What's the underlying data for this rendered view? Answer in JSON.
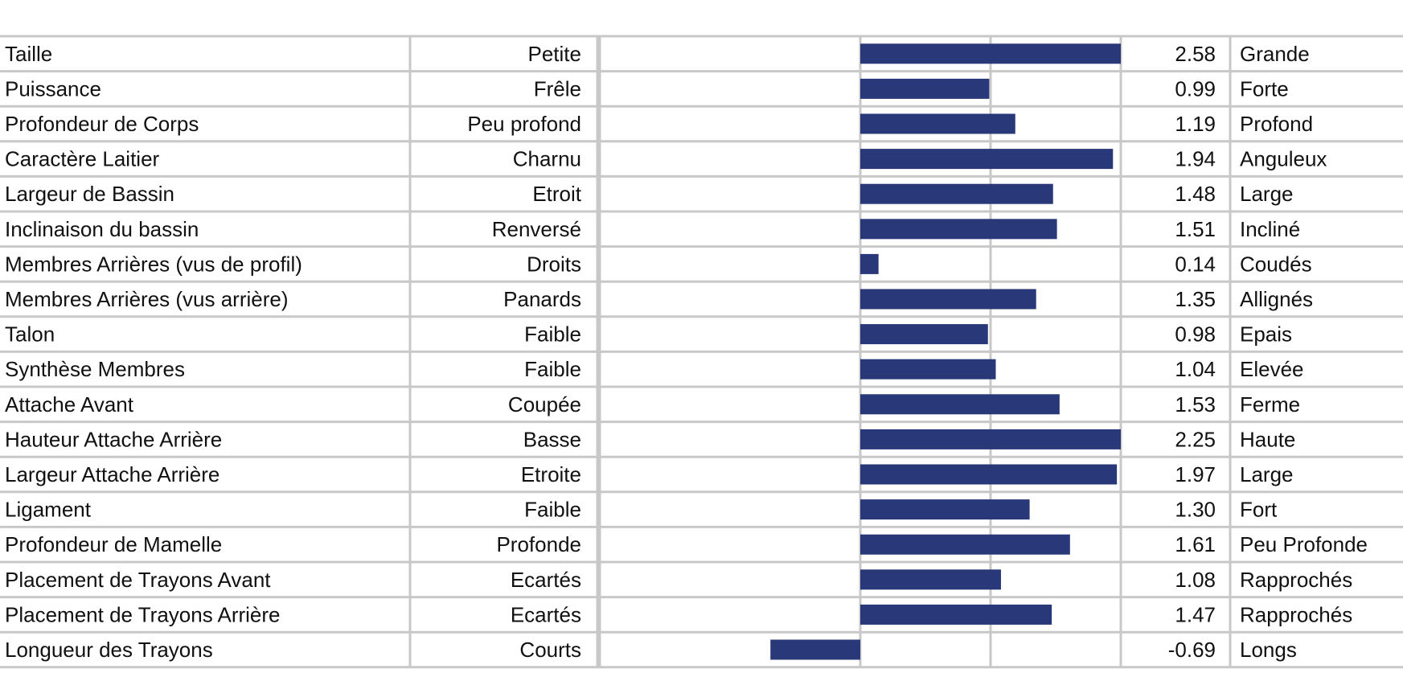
{
  "colors": {
    "bar": "#283878",
    "grid": "#c8c8c8"
  },
  "chart_data": {
    "type": "bar",
    "orientation": "horizontal",
    "xlim": [
      -2,
      2
    ],
    "grid": true,
    "rows": [
      {
        "trait": "Taille",
        "low": "Petite",
        "value": 2.58,
        "value_label": "2.58",
        "high": "Grande"
      },
      {
        "trait": "Puissance",
        "low": "Frêle",
        "value": 0.99,
        "value_label": "0.99",
        "high": "Forte"
      },
      {
        "trait": "Profondeur de Corps",
        "low": "Peu profond",
        "value": 1.19,
        "value_label": "1.19",
        "high": "Profond"
      },
      {
        "trait": "Caractère Laitier",
        "low": "Charnu",
        "value": 1.94,
        "value_label": "1.94",
        "high": "Anguleux"
      },
      {
        "trait": "Largeur de Bassin",
        "low": "Etroit",
        "value": 1.48,
        "value_label": "1.48",
        "high": "Large"
      },
      {
        "trait": "Inclinaison du bassin",
        "low": "Renversé",
        "value": 1.51,
        "value_label": "1.51",
        "high": "Incliné"
      },
      {
        "trait": "Membres Arrières (vus de profil)",
        "low": "Droits",
        "value": 0.14,
        "value_label": "0.14",
        "high": "Coudés"
      },
      {
        "trait": "Membres Arrières (vus arrière)",
        "low": "Panards",
        "value": 1.35,
        "value_label": "1.35",
        "high": "Allignés"
      },
      {
        "trait": "Talon",
        "low": "Faible",
        "value": 0.98,
        "value_label": "0.98",
        "high": "Epais"
      },
      {
        "trait": "Synthèse Membres",
        "low": "Faible",
        "value": 1.04,
        "value_label": "1.04",
        "high": "Elevée"
      },
      {
        "trait": "Attache Avant",
        "low": "Coupée",
        "value": 1.53,
        "value_label": "1.53",
        "high": "Ferme"
      },
      {
        "trait": "Hauteur Attache Arrière",
        "low": "Basse",
        "value": 2.25,
        "value_label": "2.25",
        "high": "Haute"
      },
      {
        "trait": "Largeur Attache Arrière",
        "low": "Etroite",
        "value": 1.97,
        "value_label": "1.97",
        "high": "Large"
      },
      {
        "trait": "Ligament",
        "low": "Faible",
        "value": 1.3,
        "value_label": "1.30",
        "high": "Fort"
      },
      {
        "trait": "Profondeur de Mamelle",
        "low": "Profonde",
        "value": 1.61,
        "value_label": "1.61",
        "high": "Peu Profonde"
      },
      {
        "trait": "Placement de Trayons Avant",
        "low": "Ecartés",
        "value": 1.08,
        "value_label": "1.08",
        "high": "Rapprochés"
      },
      {
        "trait": "Placement de Trayons Arrière",
        "low": "Ecartés",
        "value": 1.47,
        "value_label": "1.47",
        "high": "Rapprochés"
      },
      {
        "trait": "Longueur des Trayons",
        "low": "Courts",
        "value": -0.69,
        "value_label": "-0.69",
        "high": "Longs"
      }
    ]
  }
}
